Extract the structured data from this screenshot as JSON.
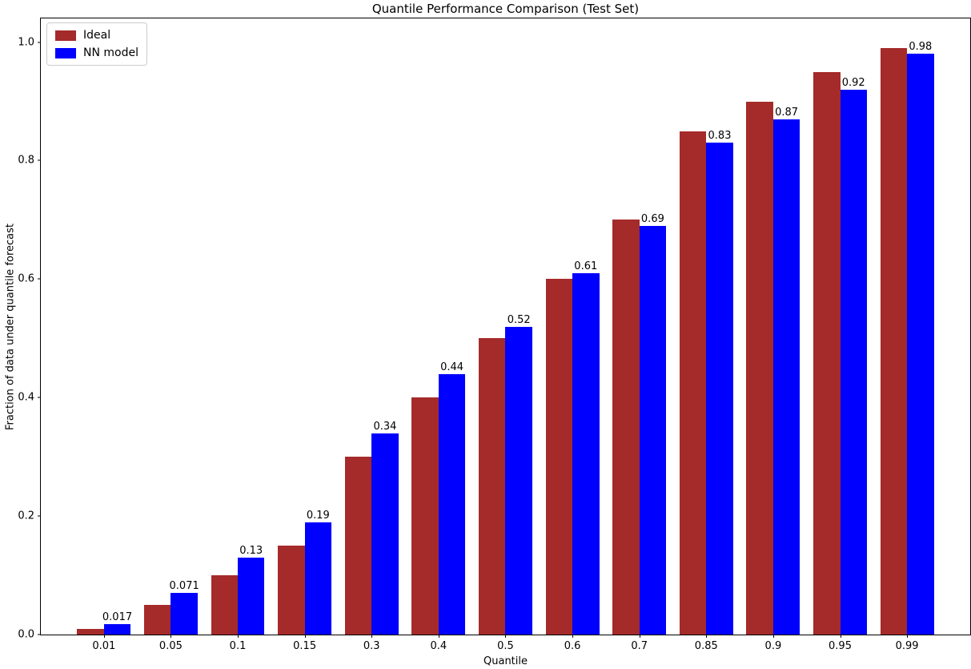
{
  "chart_data": {
    "type": "bar",
    "title": "Quantile Performance Comparison (Test Set)",
    "xlabel": "Quantile",
    "ylabel": "Fraction of data under quantile forecast",
    "categories": [
      "0.01",
      "0.05",
      "0.1",
      "0.15",
      "0.3",
      "0.4",
      "0.5",
      "0.6",
      "0.7",
      "0.85",
      "0.9",
      "0.95",
      "0.99"
    ],
    "series": [
      {
        "name": "Ideal",
        "color": "#a52a2a",
        "values": [
          0.01,
          0.05,
          0.1,
          0.15,
          0.3,
          0.4,
          0.5,
          0.6,
          0.7,
          0.85,
          0.9,
          0.95,
          0.99
        ]
      },
      {
        "name": "NN model",
        "color": "#0000ff",
        "values": [
          0.017,
          0.071,
          0.13,
          0.19,
          0.34,
          0.44,
          0.52,
          0.61,
          0.69,
          0.83,
          0.87,
          0.92,
          0.98
        ]
      }
    ],
    "bar_labels": [
      "0.017",
      "0.071",
      "0.13",
      "0.19",
      "0.34",
      "0.44",
      "0.52",
      "0.61",
      "0.69",
      "0.83",
      "0.87",
      "0.92",
      "0.98"
    ],
    "yticks": [
      "0.0",
      "0.2",
      "0.4",
      "0.6",
      "0.8",
      "1.0"
    ],
    "ylim": [
      0,
      1.04
    ],
    "grid": false,
    "legend_position": "upper left",
    "colors": {
      "background": "#ffffff",
      "spine": "#000000",
      "text": "#000000",
      "legend_border": "#cccccc"
    }
  }
}
